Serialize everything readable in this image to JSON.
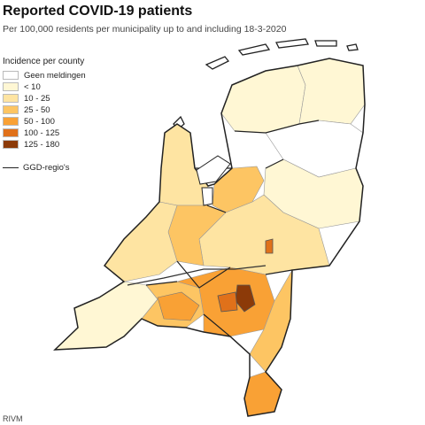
{
  "title": "Reported COVID-19 patients",
  "subtitle": "Per 100,000 residents per municipality up to and including 18-3-2020",
  "legend": {
    "heading": "Incidence per county",
    "items": [
      {
        "label": "Geen meldingen",
        "color": "#ffffff"
      },
      {
        "label": "< 10",
        "color": "#fff7d4"
      },
      {
        "label": "10 - 25",
        "color": "#fee4a2"
      },
      {
        "label": "25 - 50",
        "color": "#fdc563"
      },
      {
        "label": "50 - 100",
        "color": "#f9a135"
      },
      {
        "label": "100 - 125",
        "color": "#e0711a"
      },
      {
        "label": "125 - 180",
        "color": "#8c3a08"
      }
    ],
    "boundary_label": "GGD-regio's"
  },
  "source": "RIVM",
  "map": {
    "country": "Netherlands",
    "region_classes": {
      "friesland": "< 10",
      "groningen": "< 10",
      "drenthe": "Geen meldingen",
      "noord_holland": "10 - 25",
      "flevoland": "25 - 50",
      "overijssel": "< 10",
      "gelderland": "10 - 25",
      "utrecht": "25 - 50",
      "zuid_holland": "10 - 25",
      "zeeland": "< 10",
      "west_brabant": "25 - 50",
      "oost_brabant": "50 - 100",
      "tilburg_breda": "50 - 100",
      "brabant_hotspot": "125 - 180",
      "brabant_high": "100 - 125",
      "noord_limburg": "25 - 50",
      "zuid_limburg": "50 - 100",
      "wadden_islands": "Geen meldingen",
      "gelderland_east_hotspot": "100 - 125"
    }
  }
}
